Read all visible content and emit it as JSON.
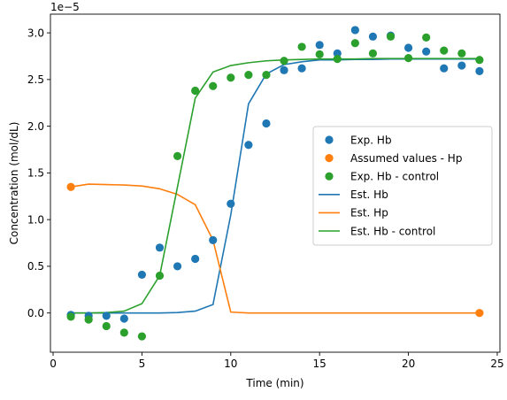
{
  "chart_data": {
    "type": "scatter",
    "xlabel": "Time (min)",
    "ylabel": "Concentration (mol/dL)",
    "y_offset_label": "1e−5",
    "xlim": [
      -0.15,
      25.15
    ],
    "ylim": [
      -0.42,
      3.2
    ],
    "y_scale_factor": 1e-05,
    "x_ticks": [
      0,
      5,
      10,
      15,
      20,
      25
    ],
    "y_ticks": [
      0.0,
      0.5,
      1.0,
      1.5,
      2.0,
      2.5,
      3.0
    ],
    "y_tick_labels": [
      "0.0",
      "0.5",
      "1.0",
      "1.5",
      "2.0",
      "2.5",
      "3.0"
    ],
    "legend_placement": "center-right",
    "grid": false,
    "series": [
      {
        "name": "Exp. Hb",
        "kind": "scatter",
        "color": "#1f77b4",
        "x": [
          1,
          2,
          3,
          4,
          5,
          6,
          7,
          8,
          9,
          10,
          11,
          12,
          13,
          14,
          15,
          16,
          17,
          18,
          19,
          20,
          21,
          22,
          23,
          24
        ],
        "y": [
          -0.02,
          -0.03,
          -0.03,
          -0.06,
          0.41,
          0.7,
          0.5,
          0.58,
          0.78,
          1.17,
          1.8,
          2.03,
          2.6,
          2.62,
          2.87,
          2.78,
          3.03,
          2.96,
          2.97,
          2.84,
          2.8,
          2.62,
          2.65,
          2.59
        ]
      },
      {
        "name": "Assumed values - Hp",
        "kind": "scatter",
        "color": "#ff7f0e",
        "x": [
          1,
          24
        ],
        "y": [
          1.35,
          0.0
        ]
      },
      {
        "name": "Exp. Hb - control",
        "kind": "scatter",
        "color": "#2ca02c",
        "x": [
          1,
          2,
          3,
          4,
          5,
          6,
          7,
          8,
          9,
          10,
          11,
          12,
          13,
          14,
          15,
          16,
          17,
          18,
          19,
          20,
          21,
          22,
          23,
          24
        ],
        "y": [
          -0.04,
          -0.07,
          -0.14,
          -0.21,
          -0.25,
          0.4,
          1.68,
          2.38,
          2.43,
          2.52,
          2.55,
          2.55,
          2.7,
          2.85,
          2.77,
          2.72,
          2.89,
          2.78,
          2.96,
          2.73,
          2.95,
          2.81,
          2.78,
          2.71
        ]
      },
      {
        "name": "Est. Hb",
        "kind": "line",
        "color": "#1f77b4",
        "x": [
          1,
          2,
          3,
          4,
          5,
          6,
          7,
          8,
          9,
          10,
          11,
          12,
          13,
          14,
          15,
          16,
          17,
          18,
          19,
          20,
          21,
          22,
          23,
          24
        ],
        "y": [
          0.0,
          0.0,
          0.0,
          0.0,
          0.0,
          0.0,
          0.005,
          0.02,
          0.09,
          1.05,
          2.24,
          2.56,
          2.66,
          2.69,
          2.71,
          2.71,
          2.715,
          2.715,
          2.72,
          2.72,
          2.72,
          2.72,
          2.72,
          2.72
        ]
      },
      {
        "name": "Est. Hp",
        "kind": "line",
        "color": "#ff7f0e",
        "x": [
          1,
          2,
          3,
          4,
          5,
          6,
          7,
          8,
          9,
          10,
          11,
          12,
          13,
          14,
          15,
          16,
          17,
          18,
          19,
          20,
          21,
          22,
          23,
          24
        ],
        "y": [
          1.35,
          1.38,
          1.375,
          1.37,
          1.36,
          1.33,
          1.27,
          1.16,
          0.78,
          0.01,
          0.0,
          0.0,
          0.0,
          0.0,
          0.0,
          0.0,
          0.0,
          0.0,
          0.0,
          0.0,
          0.0,
          0.0,
          0.0,
          0.0
        ]
      },
      {
        "name": "Est. Hb - control",
        "kind": "line",
        "color": "#2ca02c",
        "x": [
          1,
          2,
          3,
          4,
          5,
          6,
          7,
          8,
          9,
          10,
          11,
          12,
          13,
          14,
          15,
          16,
          17,
          18,
          19,
          20,
          21,
          22,
          23,
          24
        ],
        "y": [
          0.0,
          0.0,
          0.005,
          0.02,
          0.1,
          0.4,
          1.35,
          2.3,
          2.58,
          2.65,
          2.68,
          2.7,
          2.71,
          2.715,
          2.72,
          2.72,
          2.72,
          2.725,
          2.725,
          2.725,
          2.725,
          2.725,
          2.725,
          2.725
        ]
      }
    ]
  }
}
